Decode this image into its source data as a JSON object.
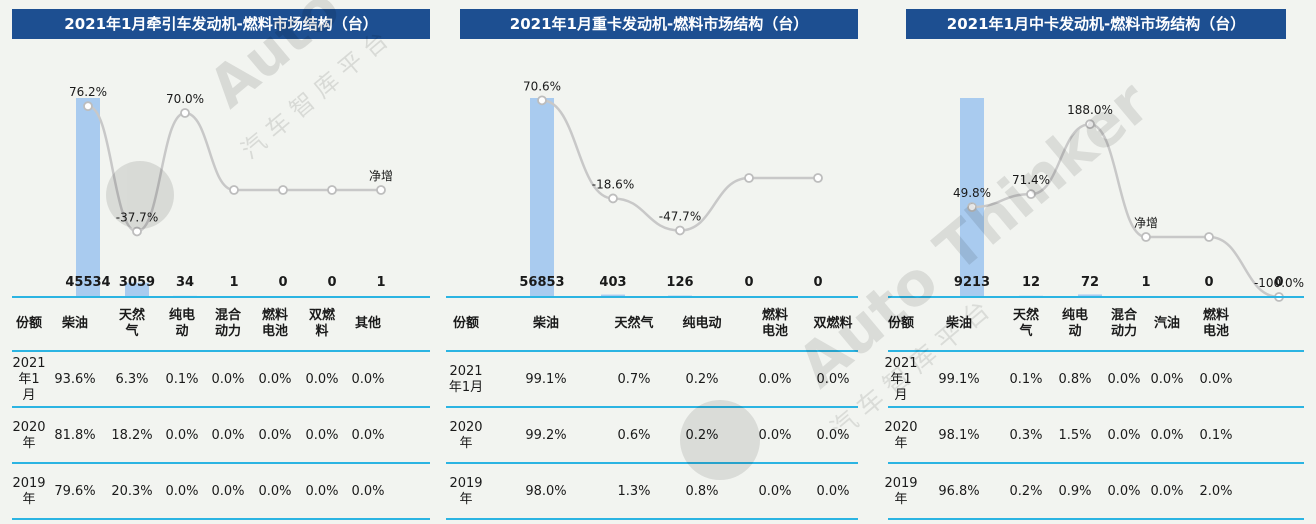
{
  "colors": {
    "title_bg": "#1d4f91",
    "bar": "#a9cbef",
    "line": "#c8c8c8",
    "rule": "#2cb4e2",
    "background": "#f2f4f0"
  },
  "watermark": {
    "text": "Auto Thinker",
    "cn": "汽 车 智 库 平 台"
  },
  "panels": [
    {
      "title": "2021年1月牵引车发动机-燃料市场结构（台）",
      "chart_data": {
        "type": "bar+line",
        "categories": [
          "柴油",
          "天然气",
          "纯电动",
          "混合动力",
          "燃料电池",
          "双燃料",
          "其他"
        ],
        "series": [
          {
            "values": [
              45534,
              3059,
              34,
              1,
              0,
              0,
              1
            ]
          },
          {
            "values": [
              76.2,
              -37.7,
              70.0,
              0,
              0,
              0,
              0
            ],
            "labels": [
              "76.2%",
              "-37.7%",
              "70.0%",
              "",
              "",
              "",
              "净增"
            ]
          }
        ],
        "value_labels": [
          "45534",
          "3059",
          "34",
          "1",
          "0",
          "0",
          "1"
        ]
      },
      "table": {
        "header": [
          "份额",
          "柴油",
          "天然\n气",
          "纯电\n动",
          "混合\n动力",
          "燃料\n电池",
          "双燃\n料",
          "其他"
        ],
        "rows": [
          [
            "2021\n年1月",
            "93.6%",
            "6.3%",
            "0.1%",
            "0.0%",
            "0.0%",
            "0.0%",
            "0.0%"
          ],
          [
            "2020\n年",
            "81.8%",
            "18.2%",
            "0.0%",
            "0.0%",
            "0.0%",
            "0.0%",
            "0.0%"
          ],
          [
            "2019\n年",
            "79.6%",
            "20.3%",
            "0.0%",
            "0.0%",
            "0.0%",
            "0.0%",
            "0.0%"
          ]
        ]
      }
    },
    {
      "title": "2021年1月重卡发动机-燃料市场结构（台）",
      "chart_data": {
        "type": "bar+line",
        "categories": [
          "柴油",
          "天然气",
          "纯电动",
          "燃料电池",
          "双燃料"
        ],
        "series": [
          {
            "values": [
              56853,
              403,
              126,
              0,
              0
            ]
          },
          {
            "values": [
              70.6,
              -18.6,
              -47.7,
              0,
              0
            ],
            "labels": [
              "70.6%",
              "-18.6%",
              "-47.7%",
              "",
              ""
            ]
          }
        ],
        "value_labels": [
          "56853",
          "403",
          "126",
          "0",
          "0"
        ]
      },
      "table": {
        "header": [
          "份额",
          "柴油",
          "天然气",
          "纯电动",
          "燃料\n电池",
          "双燃料"
        ],
        "rows": [
          [
            "2021\n年1月",
            "99.1%",
            "0.7%",
            "0.2%",
            "0.0%",
            "0.0%"
          ],
          [
            "2020\n年",
            "99.2%",
            "0.6%",
            "0.2%",
            "0.0%",
            "0.0%"
          ],
          [
            "2019\n年",
            "98.0%",
            "1.3%",
            "0.8%",
            "0.0%",
            "0.0%"
          ]
        ]
      }
    },
    {
      "title": "2021年1月中卡发动机-燃料市场结构（台）",
      "chart_data": {
        "type": "bar+line",
        "categories": [
          "柴油",
          "天然气",
          "纯电动",
          "混合动力",
          "汽油",
          "燃料电池"
        ],
        "series": [
          {
            "values": [
              9213,
              12,
              72,
              1,
              0,
              0
            ]
          },
          {
            "values": [
              49.8,
              71.4,
              188.0,
              0,
              0,
              -100.0
            ],
            "labels": [
              "49.8%",
              "71.4%",
              "188.0%",
              "净增",
              "",
              "-100.0%"
            ]
          }
        ],
        "value_labels": [
          "9213",
          "12",
          "72",
          "1",
          "0",
          "0"
        ]
      },
      "table": {
        "header": [
          "份额",
          "柴油",
          "天然\n气",
          "纯电\n动",
          "混合\n动力",
          "汽油",
          "燃料\n电池"
        ],
        "rows": [
          [
            "2021\n年1月",
            "99.1%",
            "0.1%",
            "0.8%",
            "0.0%",
            "0.0%",
            "0.0%"
          ],
          [
            "2020\n年",
            "98.1%",
            "0.3%",
            "1.5%",
            "0.0%",
            "0.0%",
            "0.1%"
          ],
          [
            "2019\n年",
            "96.8%",
            "0.2%",
            "0.9%",
            "0.0%",
            "0.0%",
            "2.0%"
          ]
        ]
      }
    }
  ]
}
